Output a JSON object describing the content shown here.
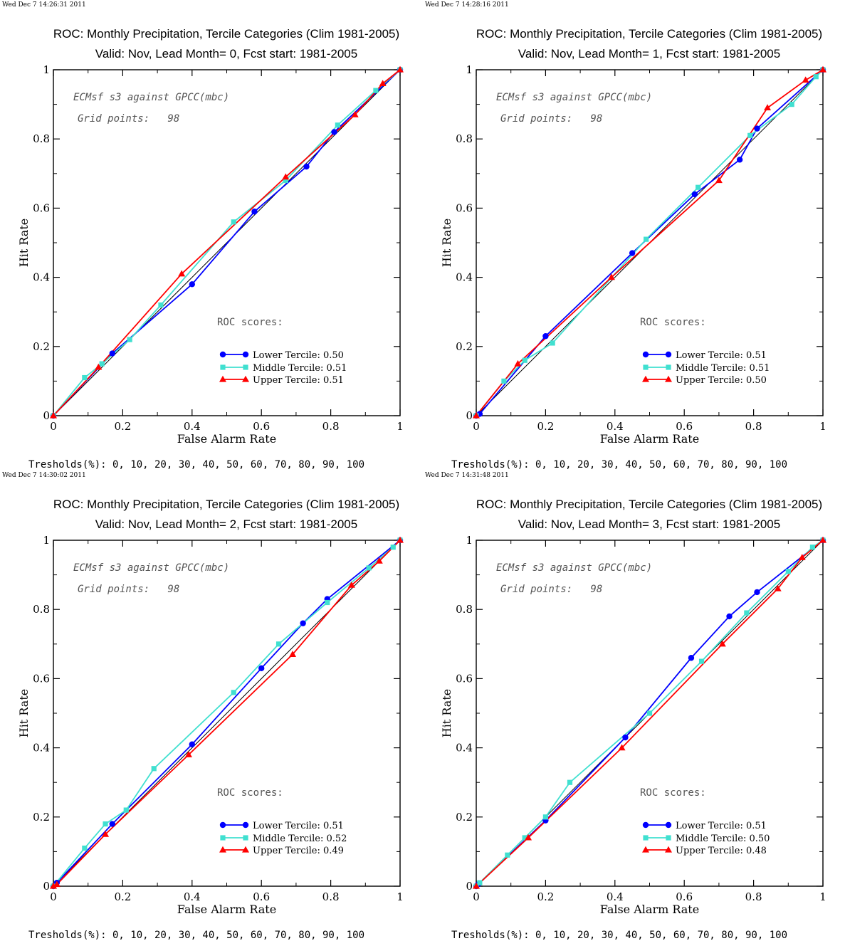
{
  "colors": {
    "lower": "#0000ff",
    "middle": "#40e0d0",
    "upper": "#ff0000",
    "diagonal": "#000000"
  },
  "chart_data": [
    {
      "type": "line",
      "timestamp": "Wed Dec  7 14:26:31 2011",
      "title": "ROC: Monthly Precipitation, Tercile Categories (Clim 1981-2005)",
      "subtitle": "Valid: Nov, Lead Month= 0, Fcst start: 1981-2005",
      "xlabel": "False Alarm Rate",
      "ylabel": "Hit Rate",
      "xlim": [
        0,
        1
      ],
      "ylim": [
        0,
        1
      ],
      "xticks": [
        "0",
        "0.2",
        "0.4",
        "0.6",
        "0.8",
        "1"
      ],
      "yticks": [
        "0",
        "0.2",
        "0.4",
        "0.6",
        "0.8",
        "1"
      ],
      "annotation_line1": "ECMsf s3 against GPCC(mbc)",
      "annotation_line2": "Grid points:   98",
      "scores_heading": "ROC scores:",
      "thresholds": "Tresholds(%): 0, 10, 20, 30, 40, 50, 60, 70, 80, 90, 100",
      "series": [
        {
          "name": "Lower Tercile: 0.50",
          "marker": "circle",
          "x": [
            0,
            0.17,
            0.4,
            0.58,
            0.73,
            0.81,
            1
          ],
          "y": [
            0,
            0.18,
            0.38,
            0.59,
            0.72,
            0.82,
            1
          ]
        },
        {
          "name": "Middle Tercile: 0.51",
          "marker": "square",
          "x": [
            0,
            0.09,
            0.14,
            0.22,
            0.31,
            0.52,
            0.67,
            0.82,
            0.93,
            1
          ],
          "y": [
            0,
            0.11,
            0.15,
            0.22,
            0.32,
            0.56,
            0.68,
            0.84,
            0.94,
            1
          ]
        },
        {
          "name": "Upper Tercile: 0.51",
          "marker": "triangle",
          "x": [
            0,
            0.13,
            0.37,
            0.67,
            0.87,
            0.95,
            1
          ],
          "y": [
            0,
            0.14,
            0.41,
            0.69,
            0.87,
            0.96,
            1
          ]
        }
      ]
    },
    {
      "type": "line",
      "timestamp": "Wed Dec  7 14:28:16 2011",
      "title": "ROC: Monthly Precipitation, Tercile Categories (Clim 1981-2005)",
      "subtitle": "Valid: Nov, Lead Month= 1, Fcst start: 1981-2005",
      "xlabel": "False Alarm Rate",
      "ylabel": "Hit Rate",
      "xlim": [
        0,
        1
      ],
      "ylim": [
        0,
        1
      ],
      "xticks": [
        "0",
        "0.2",
        "0.4",
        "0.6",
        "0.8",
        "1"
      ],
      "yticks": [
        "0",
        "0.2",
        "0.4",
        "0.6",
        "0.8",
        "1"
      ],
      "annotation_line1": "ECMsf s3 against GPCC(mbc)",
      "annotation_line2": "Grid points:   98",
      "scores_heading": "ROC scores:",
      "thresholds": "Tresholds(%): 0, 10, 20, 30, 40, 50, 60, 70, 80, 90, 100",
      "series": [
        {
          "name": "Lower Tercile: 0.51",
          "marker": "circle",
          "x": [
            0,
            0.01,
            0.2,
            0.45,
            0.63,
            0.76,
            0.81,
            1
          ],
          "y": [
            0,
            0.005,
            0.23,
            0.47,
            0.64,
            0.74,
            0.83,
            1
          ]
        },
        {
          "name": "Middle Tercile: 0.51",
          "marker": "square",
          "x": [
            0,
            0.08,
            0.14,
            0.22,
            0.49,
            0.64,
            0.79,
            0.91,
            0.98,
            1
          ],
          "y": [
            0,
            0.1,
            0.16,
            0.21,
            0.51,
            0.66,
            0.81,
            0.9,
            0.98,
            1
          ]
        },
        {
          "name": "Upper Tercile: 0.50",
          "marker": "triangle",
          "x": [
            0,
            0.12,
            0.39,
            0.7,
            0.84,
            0.95,
            1
          ],
          "y": [
            0,
            0.15,
            0.4,
            0.68,
            0.89,
            0.97,
            1
          ]
        }
      ]
    },
    {
      "type": "line",
      "timestamp": "Wed Dec  7 14:30:02 2011",
      "title": "ROC: Monthly Precipitation, Tercile Categories (Clim 1981-2005)",
      "subtitle": "Valid: Nov, Lead Month= 2, Fcst start: 1981-2005",
      "xlabel": "False Alarm Rate",
      "ylabel": "Hit Rate",
      "xlim": [
        0,
        1
      ],
      "ylim": [
        0,
        1
      ],
      "xticks": [
        "0",
        "0.2",
        "0.4",
        "0.6",
        "0.8",
        "1"
      ],
      "yticks": [
        "0",
        "0.2",
        "0.4",
        "0.6",
        "0.8",
        "1"
      ],
      "annotation_line1": "ECMsf s3 against GPCC(mbc)",
      "annotation_line2": "Grid points:   98",
      "scores_heading": "ROC scores:",
      "thresholds": "Tresholds(%): 0, 10, 20, 30, 40, 50, 60, 70, 80, 90, 100",
      "series": [
        {
          "name": "Lower Tercile: 0.51",
          "marker": "circle",
          "x": [
            0,
            0.01,
            0.17,
            0.4,
            0.6,
            0.72,
            0.79,
            1
          ],
          "y": [
            0,
            0.01,
            0.18,
            0.41,
            0.63,
            0.76,
            0.83,
            1
          ]
        },
        {
          "name": "Middle Tercile: 0.52",
          "marker": "square",
          "x": [
            0,
            0.09,
            0.15,
            0.21,
            0.29,
            0.52,
            0.65,
            0.79,
            0.91,
            0.98,
            1
          ],
          "y": [
            0,
            0.11,
            0.18,
            0.22,
            0.34,
            0.56,
            0.7,
            0.82,
            0.92,
            0.98,
            1
          ]
        },
        {
          "name": "Upper Tercile: 0.49",
          "marker": "triangle",
          "x": [
            0,
            0.01,
            0.15,
            0.39,
            0.69,
            0.86,
            0.94,
            1
          ],
          "y": [
            0,
            0.005,
            0.15,
            0.38,
            0.67,
            0.87,
            0.94,
            1
          ]
        }
      ]
    },
    {
      "type": "line",
      "timestamp": "Wed Dec  7 14:31:48 2011",
      "title": "ROC: Monthly Precipitation, Tercile Categories (Clim 1981-2005)",
      "subtitle": "Valid: Nov, Lead Month= 3, Fcst start: 1981-2005",
      "xlabel": "False Alarm Rate",
      "ylabel": "Hit Rate",
      "xlim": [
        0,
        1
      ],
      "ylim": [
        0,
        1
      ],
      "xticks": [
        "0",
        "0.2",
        "0.4",
        "0.6",
        "0.8",
        "1"
      ],
      "yticks": [
        "0",
        "0.2",
        "0.4",
        "0.6",
        "0.8",
        "1"
      ],
      "annotation_line1": "ECMsf s3 against GPCC(mbc)",
      "annotation_line2": "Grid points:   98",
      "scores_heading": "ROC scores:",
      "thresholds": "Tresholds(%): 0, 10, 20, 30, 40, 50, 60, 70, 80, 90, 100",
      "series": [
        {
          "name": "Lower Tercile: 0.51",
          "marker": "circle",
          "x": [
            0,
            0.005,
            0.2,
            0.43,
            0.62,
            0.73,
            0.81,
            1
          ],
          "y": [
            0,
            0.005,
            0.19,
            0.43,
            0.66,
            0.78,
            0.85,
            1
          ]
        },
        {
          "name": "Middle Tercile: 0.50",
          "marker": "square",
          "x": [
            0,
            0.01,
            0.09,
            0.14,
            0.2,
            0.27,
            0.5,
            0.65,
            0.78,
            0.9,
            0.97,
            1
          ],
          "y": [
            0,
            0.01,
            0.09,
            0.14,
            0.2,
            0.3,
            0.5,
            0.65,
            0.79,
            0.91,
            0.98,
            1
          ]
        },
        {
          "name": "Upper Tercile: 0.48",
          "marker": "triangle",
          "x": [
            0,
            0.15,
            0.42,
            0.71,
            0.87,
            0.94,
            1
          ],
          "y": [
            0,
            0.14,
            0.4,
            0.7,
            0.86,
            0.95,
            1
          ]
        }
      ]
    }
  ]
}
